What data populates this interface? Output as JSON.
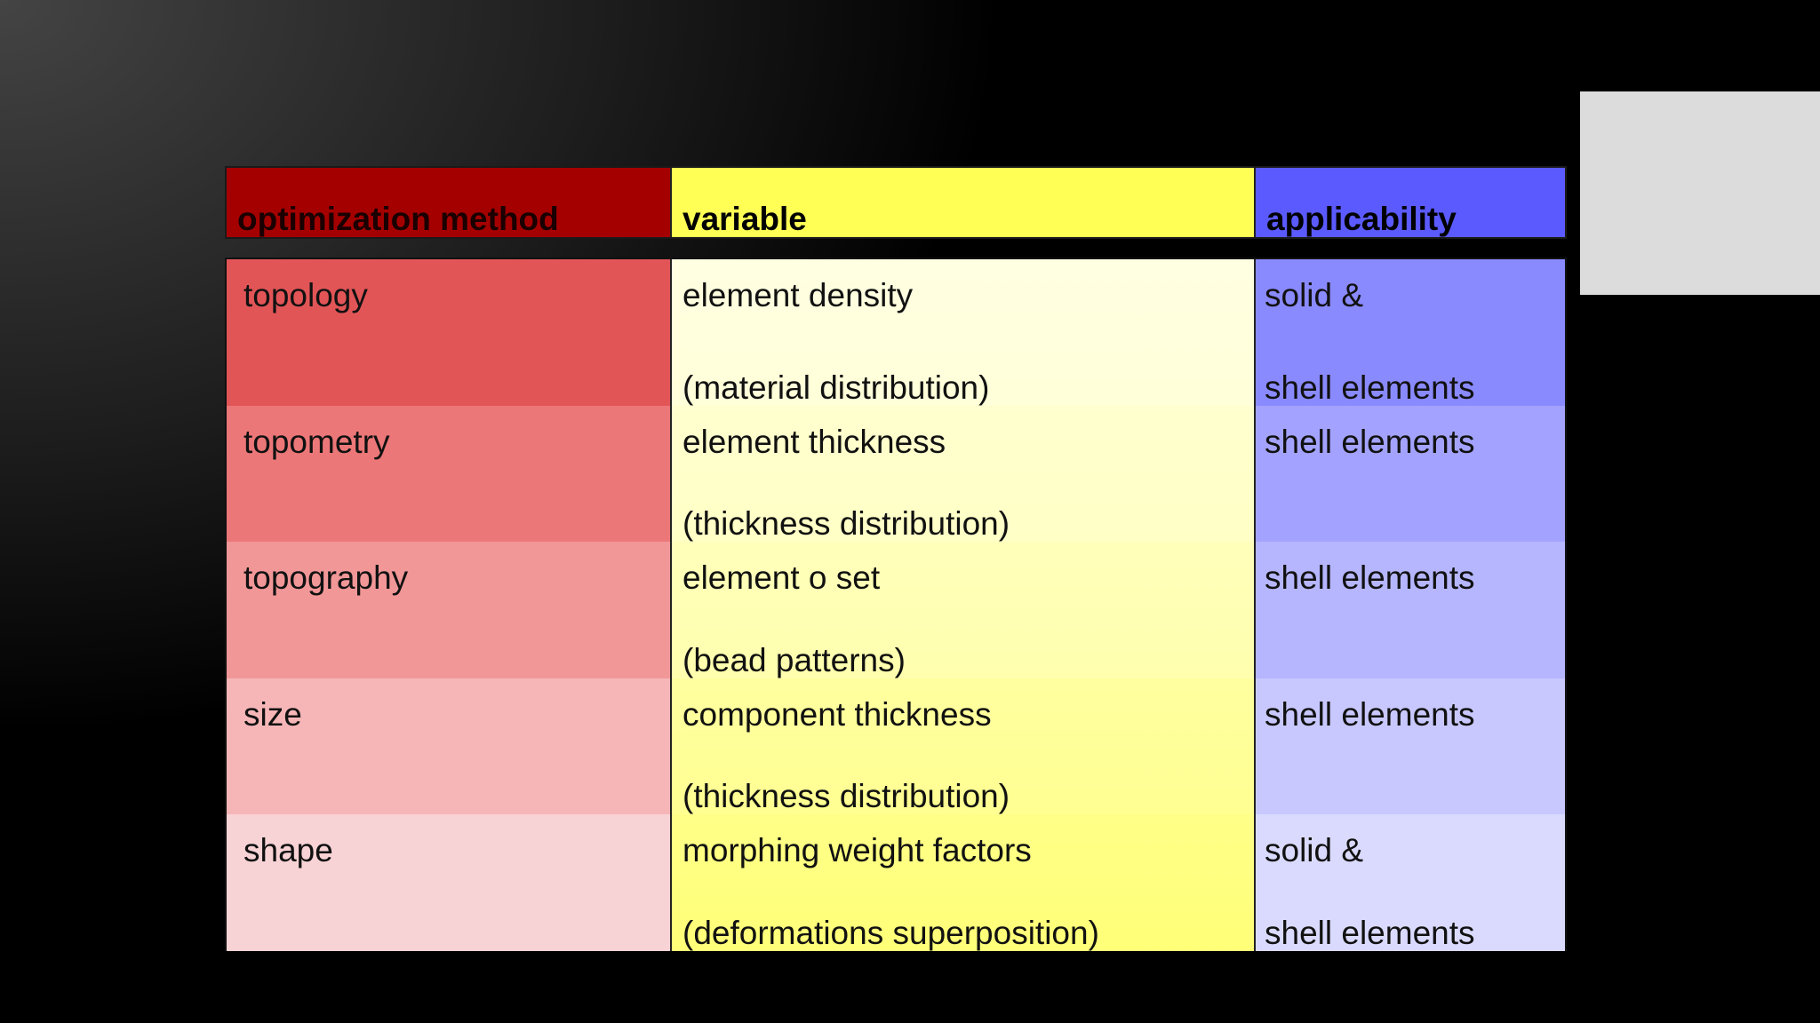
{
  "table": {
    "headers": {
      "method": "optimization method",
      "variable": "variable",
      "applicability": "applicability"
    },
    "rows": [
      {
        "method": "topology",
        "variable_line1": "element density",
        "variable_line2": "(material distribution)",
        "applicability_line1": "solid &",
        "applicability_line2": "shell elements"
      },
      {
        "method": "topometry",
        "variable_line1": "element thickness",
        "variable_line2": "(thickness distribution)",
        "applicability_line1": "shell elements",
        "applicability_line2": ""
      },
      {
        "method": "topography",
        "variable_line1": "element o set",
        "variable_line2": "(bead patterns)",
        "applicability_line1": "shell elements",
        "applicability_line2": ""
      },
      {
        "method": "size",
        "variable_line1": "component thickness",
        "variable_line2": "(thickness distribution)",
        "applicability_line1": "shell elements",
        "applicability_line2": ""
      },
      {
        "method": "shape",
        "variable_line1": "morphing weight factors",
        "variable_line2": "(deformations superposition)",
        "applicability_line1": "solid &",
        "applicability_line2": "shell elements"
      }
    ]
  },
  "colors": {
    "header_method": "#a50000",
    "header_variable": "#ffff55",
    "header_applicability": "#5a5aff",
    "placeholder": "#dcdcdc"
  }
}
